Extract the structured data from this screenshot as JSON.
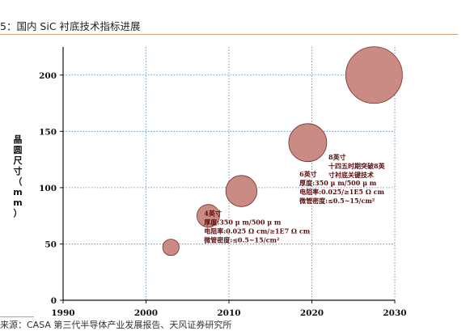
{
  "header": {
    "title": "5：国内 SiC 衬底技术指标进展"
  },
  "source": "来源：CASA 第三代半导体产业发展报告、天风证券研究所",
  "colors": {
    "bubble_fill": "#c98b83",
    "bubble_stroke": "#7a2a24",
    "grid": "#4a86b8",
    "annotation": "#5a0e0e",
    "rule": "#c9a27a"
  },
  "chart_data": {
    "type": "scatter",
    "title": "",
    "xlabel": "",
    "ylabel": "晶圆尺寸（mm）",
    "xlim": [
      1990,
      2030
    ],
    "ylim": [
      0,
      225
    ],
    "xticks": [
      1990,
      2000,
      2010,
      2020,
      2030
    ],
    "yticks": [
      0,
      50,
      100,
      150,
      200
    ],
    "grid": true,
    "series": [
      {
        "points": [
          {
            "x": 2003,
            "y": 47,
            "size": 0.29
          },
          {
            "x": 2007.5,
            "y": 75,
            "size": 0.4
          },
          {
            "x": 2011.5,
            "y": 97,
            "size": 0.55
          },
          {
            "x": 2019.5,
            "y": 140,
            "size": 0.67
          },
          {
            "x": 2027.5,
            "y": 200,
            "size": 1.0
          }
        ]
      }
    ],
    "annotations": [
      {
        "x": 2022,
        "y": 125,
        "lines": [
          "8英寸",
          "十四五时期突破8英",
          "寸衬底关键技术"
        ],
        "anchor_x": 2025.5,
        "anchor_y": 170
      },
      {
        "x": 2018.5,
        "y": 110,
        "lines": [
          "6英寸",
          "厚度:350 μ m/500 μ m",
          "电阻率:0.025/≥1E5 Ω cm",
          "微管密度:≤0.5~15/cm²"
        ],
        "anchor_x": 2020,
        "anchor_y": 114
      },
      {
        "x": 2007,
        "y": 75,
        "lines": [
          "4英寸",
          "厚度:350 μ m/500 μ m",
          "电阻率:0.025 Ω cm/≥1E7 Ω cm",
          "微管密度:≤0.5~15/cm²"
        ],
        "anchor_x": 2013,
        "anchor_y": 76
      }
    ]
  }
}
